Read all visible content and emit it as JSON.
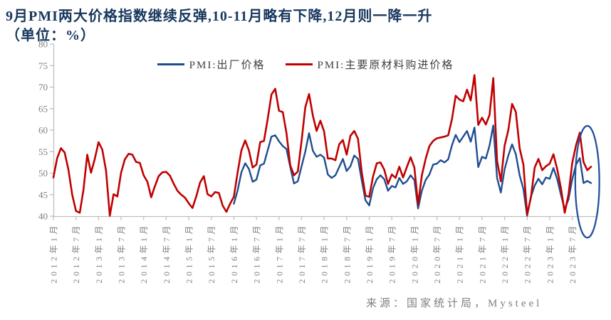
{
  "page": {
    "title": "9月PMI两大价格指数继续反弹,10-11月略有下降,12月则一降一升",
    "subtitle": "（单位：%）",
    "source": "来源：国家统计局，Mysteel"
  },
  "colors": {
    "blue_line": "#1F4E8F",
    "red_line": "#C00000",
    "title_text": "#17375E",
    "axis_line": "#BFBFBF",
    "tick_text": "#7F7F7F",
    "legend_text": "#404040",
    "annotation": "#24519B",
    "background": "#FFFFFF"
  },
  "legend": {
    "items": [
      {
        "label": "PMI:出厂价格",
        "color": "blue_line"
      },
      {
        "label": "PMI:主要原材料购进价格",
        "color": "red_line"
      }
    ]
  },
  "chart_data": {
    "type": "line",
    "title": "9月PMI两大价格指数继续反弹,10-11月略有下降,12月则一降一升",
    "unit": "%",
    "x_unit": "month",
    "x_range": [
      "2012-01",
      "2023-12"
    ],
    "x_tick_interval_months": 6,
    "x_tick_labels": [
      "2012年1月",
      "2012年7月",
      "2013年1月",
      "2013年7月",
      "2014年1月",
      "2014年7月",
      "2015年1月",
      "2015年7月",
      "2016年1月",
      "2016年7月",
      "2017年1月",
      "2017年7月",
      "2018年1月",
      "2018年7月",
      "2019年1月",
      "2019年7月",
      "2020年1月",
      "2020年7月",
      "2021年1月",
      "2021年7月",
      "2022年1月",
      "2022年7月",
      "2023年1月",
      "2023年7月"
    ],
    "ylim": [
      40,
      80
    ],
    "y_ticks": [
      40,
      45,
      50,
      55,
      60,
      65,
      70,
      75,
      80
    ],
    "grid": false,
    "legend_position": "top-center",
    "series": [
      {
        "name": "PMI:出厂价格",
        "color": "blue_line",
        "start": "2016-01",
        "values": [
          42.9,
          46.0,
          50.2,
          52.3,
          51.0,
          48.0,
          48.5,
          51.8,
          52.2,
          55.3,
          58.5,
          58.8,
          57.4,
          56.3,
          55.6,
          51.4,
          47.6,
          48.1,
          51.6,
          55.0,
          59.3,
          55.2,
          53.8,
          54.3,
          53.6,
          49.7,
          48.9,
          49.5,
          51.4,
          53.3,
          50.5,
          51.6,
          54.1,
          53.3,
          48.4,
          43.7,
          42.5,
          46.5,
          48.6,
          49.5,
          48.6,
          45.9,
          47.0,
          46.7,
          48.9,
          47.5,
          48.1,
          49.5,
          48.4,
          41.8,
          45.9,
          48.4,
          49.7,
          52.0,
          52.2,
          53.0,
          52.5,
          53.2,
          56.5,
          58.9,
          57.2,
          58.5,
          59.8,
          57.3,
          60.6,
          51.4,
          53.8,
          53.4,
          56.4,
          61.1,
          48.9,
          45.5,
          50.9,
          54.1,
          56.7,
          54.4,
          49.5,
          46.3,
          40.1,
          44.5,
          47.1,
          48.7,
          47.4,
          49.0,
          48.7,
          51.2,
          48.6,
          44.9,
          41.6,
          43.9,
          48.6,
          52.0,
          53.5,
          47.7,
          48.2,
          47.7
        ]
      },
      {
        "name": "PMI:主要原材料购进价格",
        "color": "red_line",
        "start": "2012-01",
        "values": [
          49.0,
          53.5,
          55.8,
          54.8,
          50.8,
          45.0,
          41.2,
          40.8,
          46.1,
          54.3,
          50.1,
          53.3,
          57.2,
          55.5,
          50.6,
          40.1,
          45.1,
          44.6,
          50.1,
          53.2,
          54.5,
          54.3,
          52.6,
          52.4,
          49.5,
          48.0,
          44.4,
          47.0,
          49.3,
          50.2,
          50.3,
          49.4,
          47.5,
          45.9,
          45.0,
          44.3,
          43.0,
          41.9,
          44.6,
          47.8,
          49.3,
          45.1,
          44.6,
          45.6,
          45.4,
          42.5,
          41.0,
          42.9,
          44.5,
          50.2,
          55.3,
          57.6,
          55.3,
          51.3,
          52.0,
          57.2,
          57.5,
          62.6,
          68.3,
          69.6,
          64.5,
          64.2,
          59.3,
          51.8,
          49.5,
          50.4,
          57.5,
          65.3,
          68.4,
          63.4,
          59.8,
          62.2,
          59.7,
          53.4,
          53.4,
          53.0,
          56.7,
          57.7,
          54.3,
          58.7,
          59.8,
          58.0,
          50.3,
          44.8,
          44.5,
          49.2,
          52.3,
          52.5,
          50.8,
          47.5,
          49.7,
          48.9,
          51.5,
          49.0,
          51.4,
          53.7,
          51.3,
          42.7,
          49.5,
          53.3,
          56.3,
          57.5,
          58.1,
          58.3,
          58.5,
          58.8,
          62.6,
          68.0,
          67.1,
          66.7,
          69.4,
          66.9,
          72.8,
          61.2,
          62.9,
          61.3,
          63.5,
          72.1,
          52.9,
          48.1,
          56.4,
          60.0,
          66.1,
          64.2,
          55.8,
          52.0,
          40.4,
          44.3,
          51.3,
          53.3,
          50.7,
          51.6,
          52.2,
          54.4,
          50.9,
          46.4,
          40.8,
          45.0,
          52.4,
          56.5,
          59.4,
          52.6,
          50.7,
          51.5
        ]
      }
    ],
    "annotation": {
      "type": "ellipse",
      "purpose": "highlights Sep-Dec 2023 moves: purchase price up, ex-factory price down",
      "center_month": "2023-11",
      "center_value": 48,
      "rx_months": 3.2,
      "ry_value": 13
    }
  }
}
